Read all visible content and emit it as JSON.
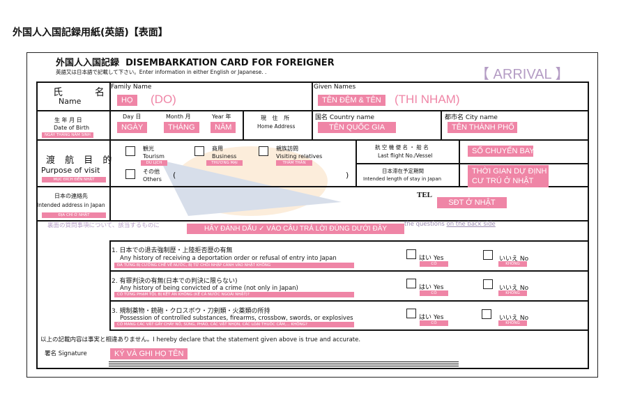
{
  "page_title": "外国人入国記録用紙(英語)【表面】",
  "card": {
    "title_jp": "外国人入国記録",
    "title_en": "DISEMBARKATION CARD FOR FOREIGNER",
    "instruction": "英語又は日本語で記載して下さい。Enter information in either English or Japanese. .",
    "arrival": "【 ARRIVAL 】",
    "name": {
      "label_jp": "氏　　名",
      "label_en": "Name",
      "family_label": "Family Name",
      "family_tag": "HỌ",
      "family_example": "(DO)",
      "given_label": "Given Names",
      "given_tag": "TÊN ĐỆM & TÊN",
      "given_example": "(THI NHAM)"
    },
    "dob": {
      "label_jp": "生 年 月 日",
      "label_en": "Date of Birth",
      "tag": "NGÀY THÁNG NĂM SINH",
      "day_label": "Day 日",
      "day_tag": "NGÀY",
      "month_label": "Month 月",
      "month_tag": "THÁNG",
      "year_label": "Year 年",
      "year_tag": "NĂM"
    },
    "home": {
      "label_jp": "現 住 所",
      "label_en": "Home Address",
      "country_label": "国名 Country name",
      "country_tag": "TÊN QUỐC GIA",
      "city_label": "都市名 City name",
      "city_tag": "TÊN THÀNH PHỐ"
    },
    "purpose": {
      "label_jp": "渡 航 目 的",
      "label_en": "Purpose of visit",
      "tag": "MỤC ĐÍCH ĐẾN NHẬT",
      "options": [
        {
          "jp": "観光",
          "en": "Tourism",
          "tag": "DU LỊCH"
        },
        {
          "jp": "商用",
          "en": "Business",
          "tag": "THƯƠNG MẠI"
        },
        {
          "jp": "親族訪問",
          "en": "Visiting relatives",
          "tag": "THĂM THÂN"
        },
        {
          "jp": "その他",
          "en": "Others",
          "tag": ""
        }
      ],
      "paren_open": "(",
      "paren_close": ")"
    },
    "flight": {
      "label_jp": "航 空 機 便 名 ・ 船 名",
      "label_en": "Last flight No./Vessel",
      "tag": "SỐ CHUYẾN BAY"
    },
    "stay": {
      "label_jp": "日本滞在予定期間",
      "label_en": "Intended length of stay in Japan",
      "tag_line1": "THỜI GIAN DỰ ĐỊNH",
      "tag_line2": "CƯ TRÚ Ở NHẬT"
    },
    "address": {
      "label_jp": "日本の連絡先",
      "label_en": "Intended address in Japan",
      "tag": "ĐỊA CHỈ Ở NHẬT",
      "tel_label": "TEL",
      "tel_tag": "SĐT Ở NHẬT"
    },
    "check_instruction": {
      "text_jp": "裏面の質問事項について、該当するものに",
      "text_en": "the questions",
      "link": "on the back side",
      "tag": "HÃY ĐÁNH DẤU ✓ VÀO CÂU TRẢ LỜI ĐÚNG DƯỚI ĐÂY"
    },
    "questions": [
      {
        "jp": "1. 日本での退去強制歴・上陸拒否歴の有無",
        "en": "Any history of receiving a deportation order or refusal of entry into Japan",
        "tag": "ĐÃ TỪNG BỊ CƯỠNG CHẾ VỀ NƯỚC, BỊ TỪ CHỐI NHẬP CẢNH VÀO NHẬT KHÔNG"
      },
      {
        "jp": "2. 有罪判決の有無(日本での判決に限らない)",
        "en": "Any history of being convicted of a crime (not only in Japan)",
        "tag": "CÓ TỪNG PHẠM TỘI, BỊ KẾT ÁN KHÔNG (KỂ CẢ NƯỚC NGOÀI NHẬT)?"
      },
      {
        "jp": "3. 規制薬物・銃砲・クロスボウ・刀剣類・火薬類の所持",
        "en": "Possession of controlled substances, firearms, crossbow, swords, or explosives",
        "tag": "CÓ MANG CÁC VẬT GÂY CHÁY NỔ, SÚNG, PHÁO, CÁC VẬT NHỌN, CÁC LOẠI THUỐC CẤM,... KHÔNG?"
      }
    ],
    "yes_label": "はい Yes",
    "yes_tag": "CÓ",
    "no_label": "いいえ No",
    "no_tag": "KHÔNG",
    "declaration": "以上の記載内容は事実と相違ありません。I hereby declare that the statement given above is true and accurate.",
    "signature_label": "署名 Signature",
    "signature_tag": "KÝ VÀ GHI HỌ TÊN"
  },
  "colors": {
    "tag": "#ef85a6",
    "arrival": "#b49cc4"
  }
}
